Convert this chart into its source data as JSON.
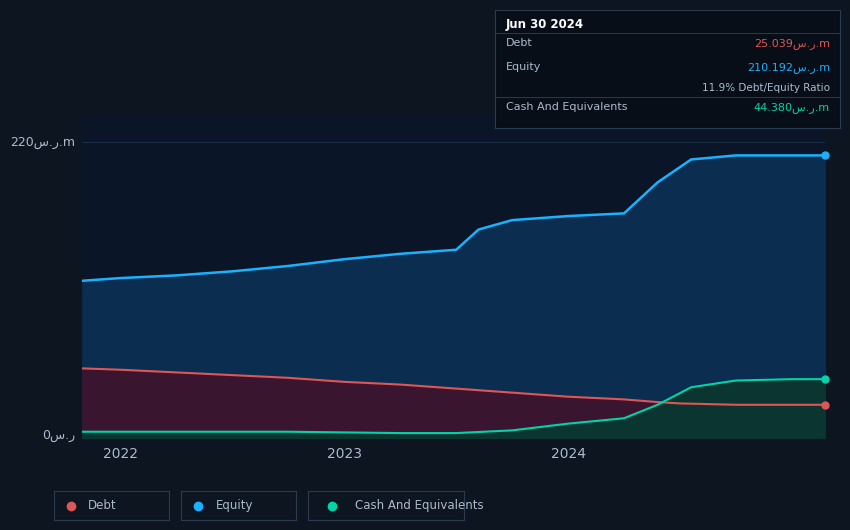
{
  "bg_color": "#0d1520",
  "plot_bg_color": "#0a1628",
  "ylim": [
    0,
    240
  ],
  "xlim_left": 2021.83,
  "xlim_right": 2025.15,
  "x_ticks": [
    2022,
    2023,
    2024
  ],
  "equity_color": "#1ab2ff",
  "equity_fill": "#0a2d50",
  "debt_color": "#e05555",
  "debt_fill": "#3a1530",
  "cash_color": "#00d4a8",
  "cash_fill": "#0a3530",
  "equity_x": [
    2021.83,
    2022.0,
    2022.25,
    2022.5,
    2022.75,
    2023.0,
    2023.25,
    2023.5,
    2023.6,
    2023.75,
    2024.0,
    2024.25,
    2024.4,
    2024.55,
    2024.75,
    2025.0,
    2025.15
  ],
  "equity_y": [
    117,
    119,
    121,
    124,
    128,
    133,
    137,
    140,
    155,
    162,
    165,
    167,
    190,
    207,
    210,
    210,
    210
  ],
  "debt_x": [
    2021.83,
    2022.0,
    2022.25,
    2022.5,
    2022.75,
    2023.0,
    2023.25,
    2023.5,
    2023.75,
    2024.0,
    2024.25,
    2024.4,
    2024.5,
    2024.75,
    2025.0,
    2025.15
  ],
  "debt_y": [
    52,
    51,
    49,
    47,
    45,
    42,
    40,
    37,
    34,
    31,
    29,
    27,
    26,
    25,
    25,
    25
  ],
  "cash_x": [
    2021.83,
    2022.0,
    2022.25,
    2022.5,
    2022.75,
    2023.0,
    2023.25,
    2023.5,
    2023.75,
    2024.0,
    2024.25,
    2024.4,
    2024.55,
    2024.75,
    2025.0,
    2025.15
  ],
  "cash_y": [
    5,
    5,
    5,
    5,
    5,
    4.5,
    4,
    4,
    6,
    11,
    15,
    25,
    38,
    43,
    44,
    44
  ],
  "ylabel_220": "220س.ر.m",
  "ylabel_0": "0س.ر",
  "x_tick_labels": [
    "2022",
    "2023",
    "2024"
  ],
  "grid_color": "#1a2e45",
  "text_color": "#aabbcc",
  "end_marker_x": 2025.15,
  "tooltip_title": "Jun 30 2024",
  "tooltip_debt_label": "Debt",
  "tooltip_debt_value": "25.039س.ر.m",
  "tooltip_equity_label": "Equity",
  "tooltip_equity_value": "210.192س.ر.m",
  "tooltip_ratio": "11.9% Debt/Equity Ratio",
  "tooltip_cash_label": "Cash And Equivalents",
  "tooltip_cash_value": "44.380س.ر.m",
  "legend_debt": "Debt",
  "legend_equity": "Equity",
  "legend_cash": "Cash And Equivalents"
}
